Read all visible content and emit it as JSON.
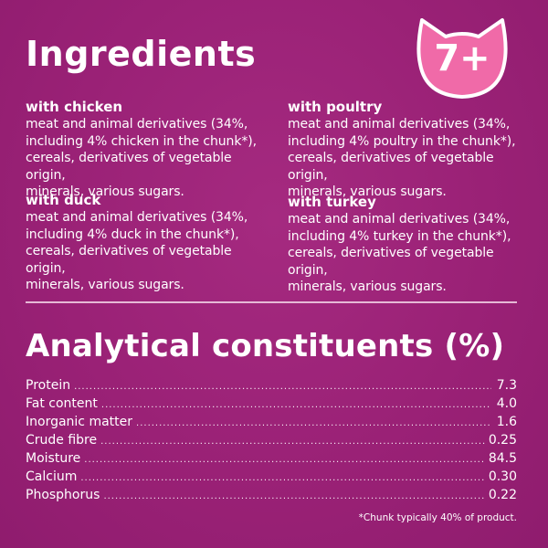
{
  "ingredients": {
    "title": "Ingredients",
    "badge": "7+",
    "items": [
      {
        "name": "with chicken",
        "lines": [
          "meat and animal derivatives (34%,",
          "including 4% chicken in the chunk*),",
          "cereals, derivatives of vegetable origin,",
          "minerals, various sugars."
        ]
      },
      {
        "name": "with duck",
        "lines": [
          "meat and animal derivatives (34%,",
          "including 4% duck in the chunk*),",
          "cereals, derivatives of vegetable origin,",
          "minerals, various sugars."
        ]
      },
      {
        "name": "with poultry",
        "lines": [
          "meat and animal derivatives (34%,",
          "including 4% poultry in the chunk*),",
          "cereals, derivatives of vegetable origin,",
          "minerals, various sugars."
        ]
      },
      {
        "name": "with turkey",
        "lines": [
          "meat and animal derivatives (34%,",
          "including 4% turkey in the chunk*),",
          "cereals, derivatives of vegetable origin,",
          "minerals, various sugars."
        ]
      }
    ]
  },
  "analytical": {
    "title": "Analytical constituents (%)",
    "rows": [
      {
        "name": "Protein",
        "value": "7.3"
      },
      {
        "name": "Fat content",
        "value": "4.0"
      },
      {
        "name": "Inorganic matter",
        "value": "1.6"
      },
      {
        "name": "Crude fibre",
        "value": "0.25"
      },
      {
        "name": "Moisture",
        "value": "84.5"
      },
      {
        "name": "Calcium",
        "value": "0.30"
      },
      {
        "name": "Phosphorus",
        "value": "0.22"
      }
    ],
    "footnote": "*Chunk typically 40% of product."
  },
  "colors": {
    "background": "#9c2277",
    "badge": "#f06aa8",
    "text": "#ffffff"
  },
  "icons": {
    "badge_shape": "cat-head-icon"
  }
}
